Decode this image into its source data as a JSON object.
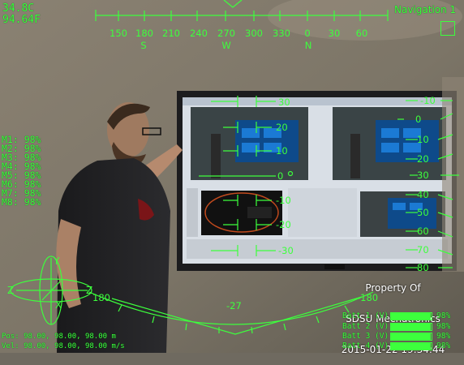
{
  "temperature": {
    "celsius": "34.8C",
    "fahrenheit": "94.64F"
  },
  "navigation": {
    "mode": "Navigation 1"
  },
  "compass": {
    "headings": [
      "150",
      "180",
      "210",
      "240",
      "270",
      "300",
      "330",
      "0",
      "30",
      "60"
    ],
    "cardinals": [
      "S",
      "W",
      "N"
    ]
  },
  "motors": [
    {
      "label": "M1: 98%"
    },
    {
      "label": "M2: 98%"
    },
    {
      "label": "M3: 98%"
    },
    {
      "label": "M4: 98%"
    },
    {
      "label": "M5: 98%"
    },
    {
      "label": "M6: 98%"
    },
    {
      "label": "M7: 98%"
    },
    {
      "label": "M8: 98%"
    }
  ],
  "pitch_ladder": {
    "right": [
      "-10",
      "0",
      "10",
      "20",
      "30",
      "40",
      "50",
      "60",
      "70",
      "80"
    ],
    "center_ticks": [
      "30",
      "20",
      "10",
      "0",
      "-10",
      "-20",
      "-30"
    ]
  },
  "axes_gizmo": {
    "y": "Y",
    "z_left": "Z",
    "z_right": "Z",
    "x": "X"
  },
  "roll_indicator": {
    "left": "180",
    "bottom": "-27",
    "right": "-180"
  },
  "watermark": {
    "line1": "Property Of",
    "line2": "SDSU Mechatronics",
    "timestamp": "2015-01-22 19:34:44"
  },
  "status": {
    "position": "Pos: 98.00, 98.00, 98.00 m",
    "velocity": "Vel: 98.00, 98.00, 98.00 m/s"
  },
  "batteries": [
    {
      "label": "Batt 1 (V)",
      "percent": "98%",
      "level": 0.98
    },
    {
      "label": "Batt 2 (V)",
      "percent": "98%",
      "level": 0.98
    },
    {
      "label": "Batt 3 (V)",
      "percent": "98%",
      "level": 0.98
    },
    {
      "label": "Batt 4 (V)",
      "percent": "98%",
      "level": 0.98
    }
  ],
  "colors": {
    "hud_green": "#3dff3d",
    "screen_blue": "#0e4a8a"
  }
}
